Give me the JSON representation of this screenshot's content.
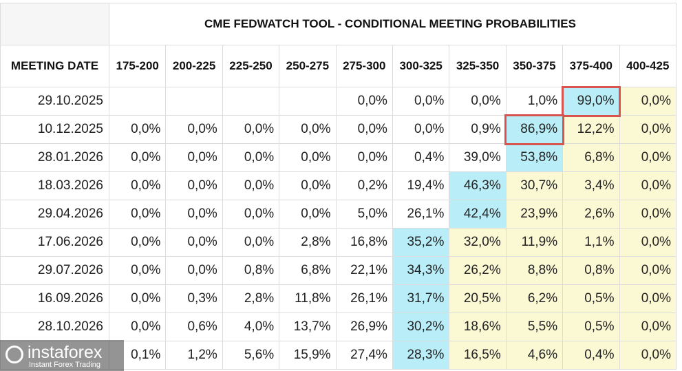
{
  "title": "CME FEDWATCH TOOL - CONDITIONAL MEETING PROBABILITIES",
  "date_header": "MEETING DATE",
  "columns": [
    "175-200",
    "200-225",
    "225-250",
    "250-275",
    "275-300",
    "300-325",
    "325-350",
    "350-375",
    "375-400",
    "400-425"
  ],
  "styles": {
    "highlight_color": "#b9eef8",
    "after_color": "#fbf9d4",
    "outline_color": "#d9534f"
  },
  "rows": [
    {
      "date": "29.10.2025",
      "highlight_col": 8,
      "outlined": true,
      "cells": [
        null,
        null,
        null,
        null,
        "0,0%",
        "0,0%",
        "0,0%",
        "1,0%",
        "99,0%",
        "0,0%"
      ]
    },
    {
      "date": "10.12.2025",
      "highlight_col": 7,
      "outlined": true,
      "cells": [
        "0,0%",
        "0,0%",
        "0,0%",
        "0,0%",
        "0,0%",
        "0,0%",
        "0,9%",
        "86,9%",
        "12,2%",
        "0,0%"
      ]
    },
    {
      "date": "28.01.2026",
      "highlight_col": 7,
      "outlined": false,
      "cells": [
        "0,0%",
        "0,0%",
        "0,0%",
        "0,0%",
        "0,0%",
        "0,4%",
        "39,0%",
        "53,8%",
        "6,8%",
        "0,0%"
      ]
    },
    {
      "date": "18.03.2026",
      "highlight_col": 6,
      "outlined": false,
      "cells": [
        "0,0%",
        "0,0%",
        "0,0%",
        "0,0%",
        "0,2%",
        "19,4%",
        "46,3%",
        "30,7%",
        "3,4%",
        "0,0%"
      ]
    },
    {
      "date": "29.04.2026",
      "highlight_col": 6,
      "outlined": false,
      "cells": [
        "0,0%",
        "0,0%",
        "0,0%",
        "0,0%",
        "5,0%",
        "26,1%",
        "42,4%",
        "23,9%",
        "2,6%",
        "0,0%"
      ]
    },
    {
      "date": "17.06.2026",
      "highlight_col": 5,
      "outlined": false,
      "cells": [
        "0,0%",
        "0,0%",
        "0,0%",
        "2,8%",
        "16,8%",
        "35,2%",
        "32,0%",
        "11,9%",
        "1,1%",
        "0,0%"
      ]
    },
    {
      "date": "29.07.2026",
      "highlight_col": 5,
      "outlined": false,
      "cells": [
        "0,0%",
        "0,0%",
        "0,8%",
        "6,8%",
        "22,1%",
        "34,3%",
        "26,2%",
        "8,8%",
        "0,8%",
        "0,0%"
      ]
    },
    {
      "date": "16.09.2026",
      "highlight_col": 5,
      "outlined": false,
      "cells": [
        "0,0%",
        "0,3%",
        "2,8%",
        "11,8%",
        "26,1%",
        "31,7%",
        "20,5%",
        "6,2%",
        "0,5%",
        "0,0%"
      ]
    },
    {
      "date": "28.10.2026",
      "highlight_col": 5,
      "outlined": false,
      "cells": [
        "0,0%",
        "0,6%",
        "4,0%",
        "13,7%",
        "26,9%",
        "30,2%",
        "18,6%",
        "5,5%",
        "0,5%",
        "0,0%"
      ]
    },
    {
      "date": null,
      "highlight_col": 5,
      "outlined": false,
      "cells": [
        "0,1%",
        "1,2%",
        "5,6%",
        "15,9%",
        "27,4%",
        "28,3%",
        "16,5%",
        "4,6%",
        "0,4%",
        "0,0%"
      ]
    }
  ],
  "watermark": {
    "brand": "instaforex",
    "tagline": "Instant Forex Trading"
  }
}
